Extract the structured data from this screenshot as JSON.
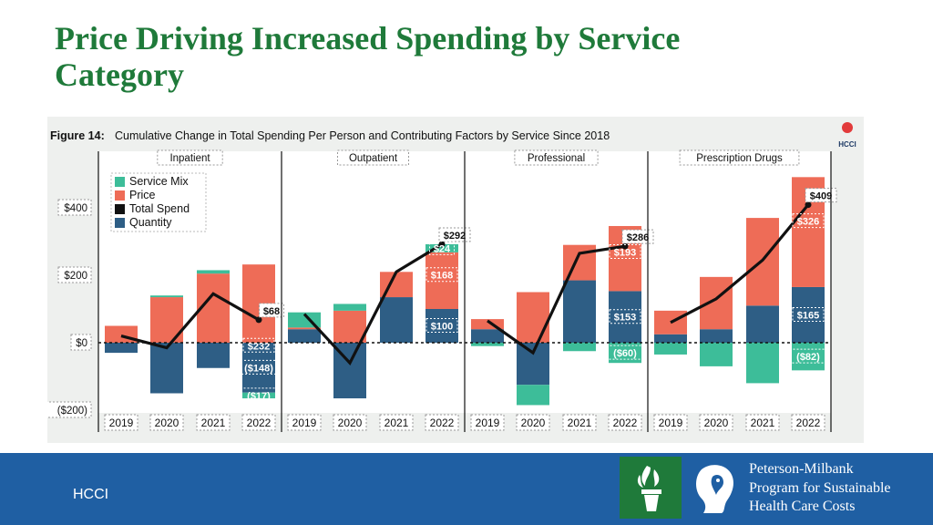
{
  "slide": {
    "title": "Price Driving Increased Spending by Service Category",
    "footer_label": "HCCI",
    "org_name_lines": [
      "Peterson-Milbank",
      "Program for Sustainable",
      "Health Care Costs"
    ]
  },
  "colors": {
    "title": "#1f7a3a",
    "footer_bg": "#1f5fa3",
    "service_mix": "#3dbd99",
    "price": "#ee6c57",
    "total_spend": "#111111",
    "quantity": "#2e5e85",
    "figure_bg": "#eef0ee"
  },
  "chart_data": {
    "type": "bar",
    "figure_label": "Figure 14:",
    "title": "Cumulative Change in Total Spending Per Person and Contributing Factors by Service Since 2018",
    "hcci_badge": "HCCI",
    "ylim": [
      -200,
      500
    ],
    "y_ticks": [
      {
        "value": 400,
        "label": "$400"
      },
      {
        "value": 200,
        "label": "$200"
      },
      {
        "value": 0,
        "label": "$0"
      },
      {
        "value": -200,
        "label": "($200)"
      }
    ],
    "categories": [
      "2019",
      "2020",
      "2021",
      "2022"
    ],
    "legend": [
      "Service Mix",
      "Price",
      "Total Spend",
      "Quantity"
    ],
    "panels": [
      {
        "name": "Inpatient",
        "quantity": [
          -30,
          -150,
          -75,
          -148
        ],
        "price": [
          50,
          135,
          205,
          232
        ],
        "service_mix": [
          0,
          5,
          10,
          -17
        ],
        "total_spend": [
          20,
          -15,
          145,
          68
        ],
        "labels": [
          {
            "series": "price",
            "year_index": 3,
            "text": "$232"
          },
          {
            "series": "total_spend",
            "year_index": 3,
            "text": "$68"
          },
          {
            "series": "quantity",
            "year_index": 3,
            "text": "($148)"
          },
          {
            "series": "service_mix",
            "year_index": 3,
            "text": "($17)"
          }
        ]
      },
      {
        "name": "Outpatient",
        "quantity": [
          40,
          -165,
          135,
          100
        ],
        "price": [
          5,
          95,
          75,
          168
        ],
        "service_mix": [
          45,
          20,
          0,
          24
        ],
        "total_spend": [
          85,
          -60,
          210,
          292
        ],
        "labels": [
          {
            "series": "total_spend",
            "year_index": 3,
            "text": "$292"
          },
          {
            "series": "service_mix",
            "year_index": 3,
            "text": "$24"
          },
          {
            "series": "price",
            "year_index": 3,
            "text": "$168"
          },
          {
            "series": "quantity",
            "year_index": 3,
            "text": "$100"
          }
        ]
      },
      {
        "name": "Professional",
        "quantity": [
          40,
          -125,
          185,
          153
        ],
        "price": [
          30,
          150,
          105,
          193
        ],
        "service_mix": [
          -10,
          -60,
          -25,
          -60
        ],
        "total_spend": [
          65,
          -30,
          265,
          286
        ],
        "labels": [
          {
            "series": "total_spend",
            "year_index": 3,
            "text": "$286"
          },
          {
            "series": "price",
            "year_index": 3,
            "text": "$193"
          },
          {
            "series": "quantity",
            "year_index": 3,
            "text": "$153"
          },
          {
            "series": "service_mix",
            "year_index": 3,
            "text": "($60)"
          }
        ]
      },
      {
        "name": "Prescription Drugs",
        "quantity": [
          25,
          40,
          110,
          165
        ],
        "price": [
          70,
          155,
          260,
          326
        ],
        "service_mix": [
          -35,
          -70,
          -120,
          -82
        ],
        "total_spend": [
          60,
          130,
          245,
          409
        ],
        "labels": [
          {
            "series": "total_spend",
            "year_index": 3,
            "text": "$409"
          },
          {
            "series": "price",
            "year_index": 3,
            "text": "$326"
          },
          {
            "series": "quantity",
            "year_index": 3,
            "text": "$165"
          },
          {
            "series": "service_mix",
            "year_index": 3,
            "text": "($82)"
          }
        ]
      }
    ]
  }
}
